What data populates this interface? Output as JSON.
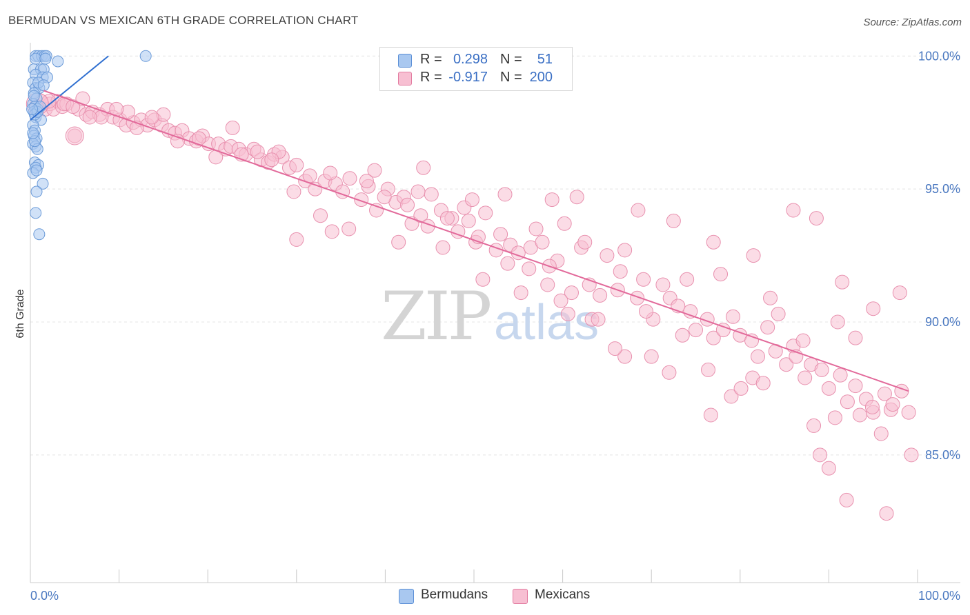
{
  "title": "BERMUDAN VS MEXICAN 6TH GRADE CORRELATION CHART",
  "source": "Source: ZipAtlas.com",
  "watermark": {
    "zip": "ZIP",
    "atlas": "atlas"
  },
  "legend": {
    "rows": [
      {
        "r_label": "R =",
        "r_value": "0.298",
        "n_label": "N =",
        "n_value": "51",
        "color": "#a9c8f0",
        "border": "#5b8fd6"
      },
      {
        "r_label": "R =",
        "r_value": "-0.917",
        "n_label": "N =",
        "n_value": "200",
        "color": "#f7bfd2",
        "border": "#e27ba0"
      }
    ]
  },
  "bottom_legend": {
    "bermudans": "Bermudans",
    "mexicans": "Mexicans"
  },
  "chart_data": {
    "type": "scatter",
    "title": "BERMUDAN VS MEXICAN 6TH GRADE CORRELATION CHART",
    "xlabel": "",
    "ylabel": "6th Grade",
    "xlim": [
      0,
      100
    ],
    "ylim": [
      80.2,
      100.5
    ],
    "x_tick_labels": {
      "left": "0.0%",
      "right": "100.0%"
    },
    "y_ticks": [
      {
        "value": 100,
        "label": "100.0%"
      },
      {
        "value": 95,
        "label": "95.0%"
      },
      {
        "value": 90,
        "label": "90.0%"
      },
      {
        "value": 85,
        "label": "85.0%"
      }
    ],
    "series": [
      {
        "name": "Bermudans",
        "color": "#a9c8f0",
        "stroke": "#6a9ad8",
        "trend": {
          "x": [
            0.0,
            8.8
          ],
          "y": [
            97.6,
            100.0
          ],
          "color": "#2f6fd0"
        },
        "points": [
          [
            0.6,
            100.0
          ],
          [
            0.9,
            100.0
          ],
          [
            1.3,
            100.0
          ],
          [
            1.6,
            100.0
          ],
          [
            1.8,
            100.0
          ],
          [
            13.0,
            100.0
          ],
          [
            3.1,
            99.8
          ],
          [
            0.4,
            99.5
          ],
          [
            1.2,
            99.5
          ],
          [
            1.5,
            99.5
          ],
          [
            0.6,
            99.3
          ],
          [
            1.4,
            99.2
          ],
          [
            1.9,
            99.2
          ],
          [
            0.3,
            99.0
          ],
          [
            0.6,
            98.8
          ],
          [
            1.0,
            98.8
          ],
          [
            0.4,
            98.6
          ],
          [
            0.7,
            98.4
          ],
          [
            0.3,
            98.2
          ],
          [
            0.5,
            98.1
          ],
          [
            0.8,
            98.0
          ],
          [
            0.4,
            97.9
          ],
          [
            0.6,
            97.7
          ],
          [
            1.2,
            97.6
          ],
          [
            0.3,
            97.4
          ],
          [
            0.5,
            97.2
          ],
          [
            0.4,
            97.0
          ],
          [
            0.7,
            96.9
          ],
          [
            0.3,
            96.7
          ],
          [
            0.6,
            96.6
          ],
          [
            0.8,
            96.5
          ],
          [
            0.5,
            96.0
          ],
          [
            0.9,
            95.9
          ],
          [
            0.6,
            95.8
          ],
          [
            0.3,
            95.6
          ],
          [
            1.4,
            95.2
          ],
          [
            0.7,
            94.9
          ],
          [
            0.6,
            94.1
          ],
          [
            1.0,
            93.3
          ],
          [
            0.5,
            97.8
          ],
          [
            0.8,
            97.9
          ],
          [
            1.1,
            98.1
          ],
          [
            0.4,
            98.5
          ],
          [
            0.9,
            99.0
          ],
          [
            1.5,
            98.9
          ],
          [
            0.5,
            96.8
          ],
          [
            0.3,
            97.1
          ],
          [
            0.7,
            95.7
          ],
          [
            0.2,
            98.0
          ],
          [
            0.6,
            99.9
          ],
          [
            1.7,
            99.9
          ]
        ]
      },
      {
        "name": "Mexicans",
        "color": "#f7bfd2",
        "stroke": "#e890ae",
        "trend": {
          "x": [
            1.5,
            99.0
          ],
          "y": [
            98.7,
            87.4
          ],
          "color": "#e2699a"
        },
        "points": [
          [
            0.8,
            98.1
          ],
          [
            1.2,
            98.3
          ],
          [
            1.7,
            98.0
          ],
          [
            2.2,
            98.2
          ],
          [
            2.6,
            98.0
          ],
          [
            3.1,
            98.3
          ],
          [
            3.6,
            98.1
          ],
          [
            4.1,
            98.2
          ],
          [
            5.4,
            98.0
          ],
          [
            6.3,
            97.8
          ],
          [
            7.0,
            97.9
          ],
          [
            7.8,
            97.8
          ],
          [
            8.7,
            98.0
          ],
          [
            9.3,
            97.7
          ],
          [
            10.1,
            97.6
          ],
          [
            10.8,
            97.4
          ],
          [
            11.6,
            97.5
          ],
          [
            12.5,
            97.6
          ],
          [
            13.2,
            97.4
          ],
          [
            14.0,
            97.6
          ],
          [
            14.8,
            97.4
          ],
          [
            15.6,
            97.2
          ],
          [
            16.3,
            97.1
          ],
          [
            17.1,
            97.2
          ],
          [
            17.9,
            96.9
          ],
          [
            18.7,
            96.8
          ],
          [
            19.4,
            97.0
          ],
          [
            20.1,
            96.7
          ],
          [
            21.2,
            96.7
          ],
          [
            22.0,
            96.5
          ],
          [
            22.6,
            96.6
          ],
          [
            23.5,
            96.5
          ],
          [
            24.3,
            96.3
          ],
          [
            25.2,
            96.5
          ],
          [
            26.0,
            96.1
          ],
          [
            26.8,
            96.0
          ],
          [
            27.5,
            96.3
          ],
          [
            28.4,
            96.2
          ],
          [
            29.2,
            95.8
          ],
          [
            30.0,
            95.9
          ],
          [
            31.0,
            95.3
          ],
          [
            32.1,
            95.0
          ],
          [
            33.2,
            95.3
          ],
          [
            34.4,
            95.2
          ],
          [
            35.2,
            94.9
          ],
          [
            36.0,
            95.4
          ],
          [
            37.3,
            94.6
          ],
          [
            38.1,
            95.1
          ],
          [
            39.0,
            94.2
          ],
          [
            40.3,
            95.0
          ],
          [
            41.2,
            94.5
          ],
          [
            42.1,
            94.7
          ],
          [
            43.0,
            93.7
          ],
          [
            44.0,
            94.0
          ],
          [
            45.2,
            94.8
          ],
          [
            46.3,
            94.2
          ],
          [
            47.5,
            93.9
          ],
          [
            48.2,
            93.4
          ],
          [
            49.4,
            93.8
          ],
          [
            50.2,
            93.0
          ],
          [
            51.3,
            94.1
          ],
          [
            52.5,
            92.7
          ],
          [
            53.0,
            93.3
          ],
          [
            54.1,
            92.9
          ],
          [
            55.0,
            92.6
          ],
          [
            56.2,
            92.0
          ],
          [
            57.0,
            93.5
          ],
          [
            58.3,
            91.4
          ],
          [
            59.4,
            92.3
          ],
          [
            60.2,
            93.7
          ],
          [
            61.0,
            91.1
          ],
          [
            62.1,
            92.8
          ],
          [
            63.0,
            91.4
          ],
          [
            64.2,
            91.0
          ],
          [
            65.0,
            92.5
          ],
          [
            66.2,
            91.2
          ],
          [
            67.0,
            92.7
          ],
          [
            68.4,
            90.9
          ],
          [
            69.1,
            91.6
          ],
          [
            70.2,
            90.1
          ],
          [
            71.3,
            91.4
          ],
          [
            72.1,
            90.9
          ],
          [
            73.0,
            90.6
          ],
          [
            74.4,
            90.4
          ],
          [
            75.0,
            89.7
          ],
          [
            76.3,
            90.1
          ],
          [
            77.0,
            89.4
          ],
          [
            78.1,
            89.7
          ],
          [
            79.2,
            90.2
          ],
          [
            80.0,
            89.5
          ],
          [
            81.3,
            89.3
          ],
          [
            82.0,
            88.7
          ],
          [
            83.1,
            89.8
          ],
          [
            84.0,
            88.9
          ],
          [
            85.2,
            88.4
          ],
          [
            86.0,
            89.1
          ],
          [
            87.3,
            87.9
          ],
          [
            88.0,
            88.4
          ],
          [
            89.2,
            88.2
          ],
          [
            90.0,
            87.5
          ],
          [
            91.3,
            88.0
          ],
          [
            92.1,
            87.0
          ],
          [
            93.0,
            87.6
          ],
          [
            94.2,
            87.1
          ],
          [
            95.0,
            86.6
          ],
          [
            96.3,
            87.3
          ],
          [
            97.0,
            86.7
          ],
          [
            98.2,
            87.4
          ],
          [
            99.0,
            86.6
          ],
          [
            8.0,
            97.7
          ],
          [
            11.0,
            97.9
          ],
          [
            15.0,
            97.8
          ],
          [
            22.8,
            97.3
          ],
          [
            28.0,
            96.4
          ],
          [
            33.8,
            95.6
          ],
          [
            38.8,
            95.7
          ],
          [
            43.7,
            94.9
          ],
          [
            48.9,
            94.3
          ],
          [
            53.5,
            94.8
          ],
          [
            58.8,
            94.6
          ],
          [
            62.5,
            93.0
          ],
          [
            68.5,
            94.2
          ],
          [
            72.5,
            93.8
          ],
          [
            77.0,
            93.0
          ],
          [
            81.5,
            92.5
          ],
          [
            86.0,
            94.2
          ],
          [
            88.6,
            93.9
          ],
          [
            91.5,
            91.5
          ],
          [
            95.0,
            90.5
          ],
          [
            98.0,
            91.1
          ],
          [
            34.0,
            93.4
          ],
          [
            30.0,
            93.1
          ],
          [
            41.5,
            93.0
          ],
          [
            46.5,
            92.8
          ],
          [
            51.0,
            91.6
          ],
          [
            55.3,
            91.1
          ],
          [
            59.8,
            90.8
          ],
          [
            63.3,
            90.1
          ],
          [
            67.0,
            88.7
          ],
          [
            70.0,
            88.7
          ],
          [
            73.5,
            89.5
          ],
          [
            76.4,
            88.2
          ],
          [
            79.0,
            87.2
          ],
          [
            81.4,
            87.9
          ],
          [
            82.6,
            87.7
          ],
          [
            84.3,
            90.3
          ],
          [
            88.3,
            86.1
          ],
          [
            90.0,
            84.5
          ],
          [
            93.5,
            86.5
          ],
          [
            95.9,
            85.8
          ],
          [
            97.2,
            86.9
          ],
          [
            99.3,
            85.0
          ],
          [
            90.7,
            86.4
          ],
          [
            76.7,
            86.5
          ],
          [
            80.1,
            87.5
          ],
          [
            86.3,
            88.7
          ],
          [
            89.0,
            85.0
          ],
          [
            92.0,
            83.3
          ],
          [
            94.9,
            86.8
          ],
          [
            96.5,
            82.8
          ],
          [
            72.0,
            88.1
          ],
          [
            65.9,
            89.0
          ],
          [
            64.0,
            90.1
          ],
          [
            60.6,
            90.3
          ],
          [
            58.5,
            92.1
          ],
          [
            56.4,
            92.8
          ],
          [
            53.8,
            92.2
          ],
          [
            69.4,
            90.4
          ],
          [
            74.0,
            91.6
          ],
          [
            77.8,
            91.8
          ],
          [
            83.4,
            90.9
          ],
          [
            87.1,
            89.3
          ],
          [
            91.0,
            90.0
          ],
          [
            93.0,
            89.4
          ],
          [
            2.1,
            98.3
          ],
          [
            3.8,
            98.2
          ],
          [
            4.8,
            98.1
          ],
          [
            5.9,
            98.4
          ],
          [
            6.7,
            97.7
          ],
          [
            9.7,
            98.0
          ],
          [
            12.0,
            97.3
          ],
          [
            13.7,
            97.7
          ],
          [
            16.6,
            96.8
          ],
          [
            19.0,
            96.9
          ],
          [
            20.9,
            96.2
          ],
          [
            23.8,
            96.3
          ],
          [
            25.6,
            96.4
          ],
          [
            27.2,
            96.1
          ],
          [
            29.7,
            94.9
          ],
          [
            31.5,
            95.5
          ],
          [
            32.7,
            94.0
          ],
          [
            35.9,
            93.5
          ],
          [
            37.9,
            95.3
          ],
          [
            39.9,
            94.7
          ],
          [
            42.5,
            94.4
          ],
          [
            44.8,
            93.6
          ],
          [
            47.0,
            93.9
          ],
          [
            49.8,
            94.6
          ],
          [
            5.0,
            97.0
          ],
          [
            44.3,
            95.8
          ],
          [
            57.7,
            93.0
          ],
          [
            50.5,
            93.2
          ],
          [
            61.6,
            94.7
          ],
          [
            66.5,
            91.9
          ]
        ]
      }
    ]
  }
}
